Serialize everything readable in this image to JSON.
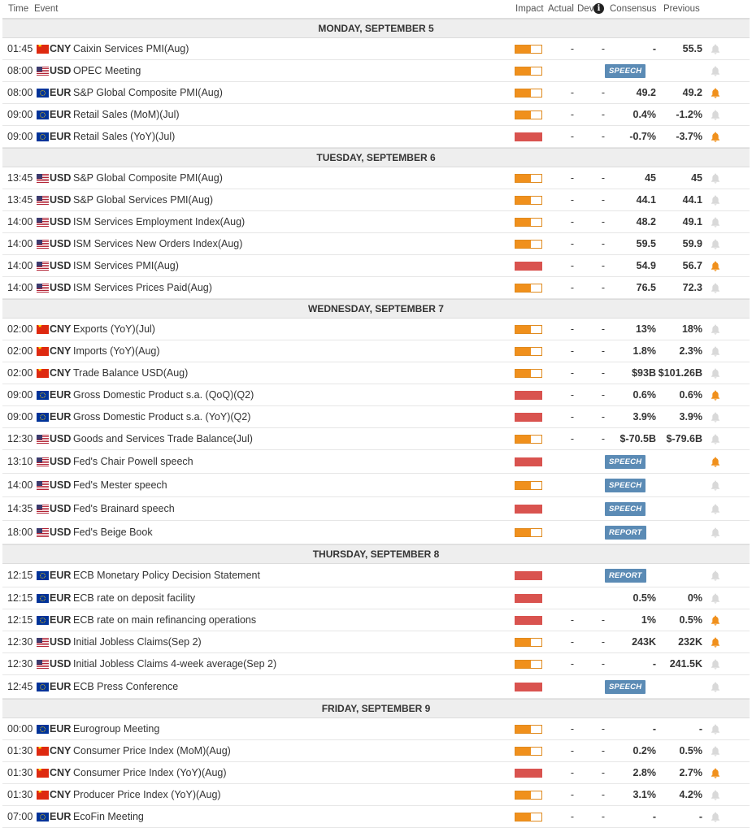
{
  "header": {
    "time": "Time",
    "event": "Event",
    "impact": "Impact",
    "actual": "Actual",
    "dev": "Dev",
    "consensus": "Consensus",
    "previous": "Previous"
  },
  "colors": {
    "impact_medium": "#f0901c",
    "impact_high": "#d9534f",
    "bell_active": "#f0901c",
    "bell_inactive": "#d9d9d9",
    "tag_bg": "#5b8bb5"
  },
  "days": [
    {
      "label": "MONDAY, SEPTEMBER 5",
      "events": [
        {
          "time": "01:45",
          "flag": "cn",
          "currency": "CNY",
          "event": "Caixin Services PMI(Aug)",
          "impact": "medium",
          "actual": "-",
          "dev": "-",
          "consensus": "-",
          "previous": "55.5",
          "alert": false
        },
        {
          "time": "08:00",
          "flag": "us",
          "currency": "USD",
          "event": "OPEC Meeting",
          "impact": "medium",
          "tag": "SPEECH",
          "alert": false
        },
        {
          "time": "08:00",
          "flag": "eu",
          "currency": "EUR",
          "event": "S&P Global Composite PMI(Aug)",
          "impact": "medium",
          "actual": "-",
          "dev": "-",
          "consensus": "49.2",
          "previous": "49.2",
          "alert": true
        },
        {
          "time": "09:00",
          "flag": "eu",
          "currency": "EUR",
          "event": "Retail Sales (MoM)(Jul)",
          "impact": "medium",
          "actual": "-",
          "dev": "-",
          "consensus": "0.4%",
          "previous": "-1.2%",
          "alert": false
        },
        {
          "time": "09:00",
          "flag": "eu",
          "currency": "EUR",
          "event": "Retail Sales (YoY)(Jul)",
          "impact": "high",
          "actual": "-",
          "dev": "-",
          "consensus": "-0.7%",
          "previous": "-3.7%",
          "alert": true
        }
      ]
    },
    {
      "label": "TUESDAY, SEPTEMBER 6",
      "events": [
        {
          "time": "13:45",
          "flag": "us",
          "currency": "USD",
          "event": "S&P Global Composite PMI(Aug)",
          "impact": "medium",
          "actual": "-",
          "dev": "-",
          "consensus": "45",
          "previous": "45",
          "alert": false
        },
        {
          "time": "13:45",
          "flag": "us",
          "currency": "USD",
          "event": "S&P Global Services PMI(Aug)",
          "impact": "medium",
          "actual": "-",
          "dev": "-",
          "consensus": "44.1",
          "previous": "44.1",
          "alert": false
        },
        {
          "time": "14:00",
          "flag": "us",
          "currency": "USD",
          "event": "ISM Services Employment Index(Aug)",
          "impact": "medium",
          "actual": "-",
          "dev": "-",
          "consensus": "48.2",
          "previous": "49.1",
          "alert": false
        },
        {
          "time": "14:00",
          "flag": "us",
          "currency": "USD",
          "event": "ISM Services New Orders Index(Aug)",
          "impact": "medium",
          "actual": "-",
          "dev": "-",
          "consensus": "59.5",
          "previous": "59.9",
          "alert": false
        },
        {
          "time": "14:00",
          "flag": "us",
          "currency": "USD",
          "event": "ISM Services PMI(Aug)",
          "impact": "high",
          "actual": "-",
          "dev": "-",
          "consensus": "54.9",
          "previous": "56.7",
          "alert": true
        },
        {
          "time": "14:00",
          "flag": "us",
          "currency": "USD",
          "event": "ISM Services Prices Paid(Aug)",
          "impact": "medium",
          "actual": "-",
          "dev": "-",
          "consensus": "76.5",
          "previous": "72.3",
          "alert": false
        }
      ]
    },
    {
      "label": "WEDNESDAY, SEPTEMBER 7",
      "events": [
        {
          "time": "02:00",
          "flag": "cn",
          "currency": "CNY",
          "event": "Exports (YoY)(Jul)",
          "impact": "medium",
          "actual": "-",
          "dev": "-",
          "consensus": "13%",
          "previous": "18%",
          "alert": false
        },
        {
          "time": "02:00",
          "flag": "cn",
          "currency": "CNY",
          "event": "Imports (YoY)(Aug)",
          "impact": "medium",
          "actual": "-",
          "dev": "-",
          "consensus": "1.8%",
          "previous": "2.3%",
          "alert": false
        },
        {
          "time": "02:00",
          "flag": "cn",
          "currency": "CNY",
          "event": "Trade Balance USD(Aug)",
          "impact": "medium",
          "actual": "-",
          "dev": "-",
          "consensus": "$93B",
          "previous": "$101.26B",
          "alert": false
        },
        {
          "time": "09:00",
          "flag": "eu",
          "currency": "EUR",
          "event": "Gross Domestic Product s.a. (QoQ)(Q2)",
          "impact": "high",
          "actual": "-",
          "dev": "-",
          "consensus": "0.6%",
          "previous": "0.6%",
          "alert": true
        },
        {
          "time": "09:00",
          "flag": "eu",
          "currency": "EUR",
          "event": "Gross Domestic Product s.a. (YoY)(Q2)",
          "impact": "high",
          "actual": "-",
          "dev": "-",
          "consensus": "3.9%",
          "previous": "3.9%",
          "alert": false
        },
        {
          "time": "12:30",
          "flag": "us",
          "currency": "USD",
          "event": "Goods and Services Trade Balance(Jul)",
          "impact": "medium",
          "actual": "-",
          "dev": "-",
          "consensus": "$-70.5B",
          "previous": "$-79.6B",
          "alert": false
        },
        {
          "time": "13:10",
          "flag": "us",
          "currency": "USD",
          "event": "Fed's Chair Powell speech",
          "impact": "high",
          "tag": "SPEECH",
          "alert": true,
          "tall": true
        },
        {
          "time": "14:00",
          "flag": "us",
          "currency": "USD",
          "event": "Fed's Mester speech",
          "impact": "medium",
          "tag": "SPEECH",
          "alert": false,
          "tall": true
        },
        {
          "time": "14:35",
          "flag": "us",
          "currency": "USD",
          "event": "Fed's Brainard speech",
          "impact": "high",
          "tag": "SPEECH",
          "alert": false,
          "tall": true
        },
        {
          "time": "18:00",
          "flag": "us",
          "currency": "USD",
          "event": "Fed's Beige Book",
          "impact": "medium",
          "tag": "REPORT",
          "alert": false,
          "tall": true
        }
      ]
    },
    {
      "label": "THURSDAY, SEPTEMBER 8",
      "events": [
        {
          "time": "12:15",
          "flag": "eu",
          "currency": "EUR",
          "event": "ECB Monetary Policy Decision Statement",
          "impact": "high",
          "tag": "REPORT",
          "alert": false,
          "tall": true
        },
        {
          "time": "12:15",
          "flag": "eu",
          "currency": "EUR",
          "event": "ECB rate on deposit facility",
          "impact": "high",
          "actual": "",
          "dev": "",
          "consensus": "0.5%",
          "previous": "0%",
          "alert": false
        },
        {
          "time": "12:15",
          "flag": "eu",
          "currency": "EUR",
          "event": "ECB rate on main refinancing operations",
          "impact": "high",
          "actual": "-",
          "dev": "-",
          "consensus": "1%",
          "previous": "0.5%",
          "alert": true
        },
        {
          "time": "12:30",
          "flag": "us",
          "currency": "USD",
          "event": "Initial Jobless Claims(Sep 2)",
          "impact": "medium",
          "actual": "-",
          "dev": "-",
          "consensus": "243K",
          "previous": "232K",
          "alert": true
        },
        {
          "time": "12:30",
          "flag": "us",
          "currency": "USD",
          "event": "Initial Jobless Claims 4-week average(Sep 2)",
          "impact": "medium",
          "actual": "-",
          "dev": "-",
          "consensus": "-",
          "previous": "241.5K",
          "alert": false
        },
        {
          "time": "12:45",
          "flag": "eu",
          "currency": "EUR",
          "event": "ECB Press Conference",
          "impact": "high",
          "tag": "SPEECH",
          "alert": false,
          "tall": true
        }
      ]
    },
    {
      "label": "FRIDAY, SEPTEMBER 9",
      "events": [
        {
          "time": "00:00",
          "flag": "eu",
          "currency": "EUR",
          "event": "Eurogroup Meeting",
          "impact": "medium",
          "actual": "-",
          "dev": "-",
          "consensus": "-",
          "previous": "-",
          "alert": false
        },
        {
          "time": "01:30",
          "flag": "cn",
          "currency": "CNY",
          "event": "Consumer Price Index (MoM)(Aug)",
          "impact": "medium",
          "actual": "-",
          "dev": "-",
          "consensus": "0.2%",
          "previous": "0.5%",
          "alert": false
        },
        {
          "time": "01:30",
          "flag": "cn",
          "currency": "CNY",
          "event": "Consumer Price Index (YoY)(Aug)",
          "impact": "high",
          "actual": "-",
          "dev": "-",
          "consensus": "2.8%",
          "previous": "2.7%",
          "alert": true
        },
        {
          "time": "01:30",
          "flag": "cn",
          "currency": "CNY",
          "event": "Producer Price Index (YoY)(Aug)",
          "impact": "medium",
          "actual": "-",
          "dev": "-",
          "consensus": "3.1%",
          "previous": "4.2%",
          "alert": false
        },
        {
          "time": "07:00",
          "flag": "eu",
          "currency": "EUR",
          "event": "EcoFin Meeting",
          "impact": "medium",
          "actual": "-",
          "dev": "-",
          "consensus": "-",
          "previous": "-",
          "alert": false
        }
      ]
    }
  ]
}
